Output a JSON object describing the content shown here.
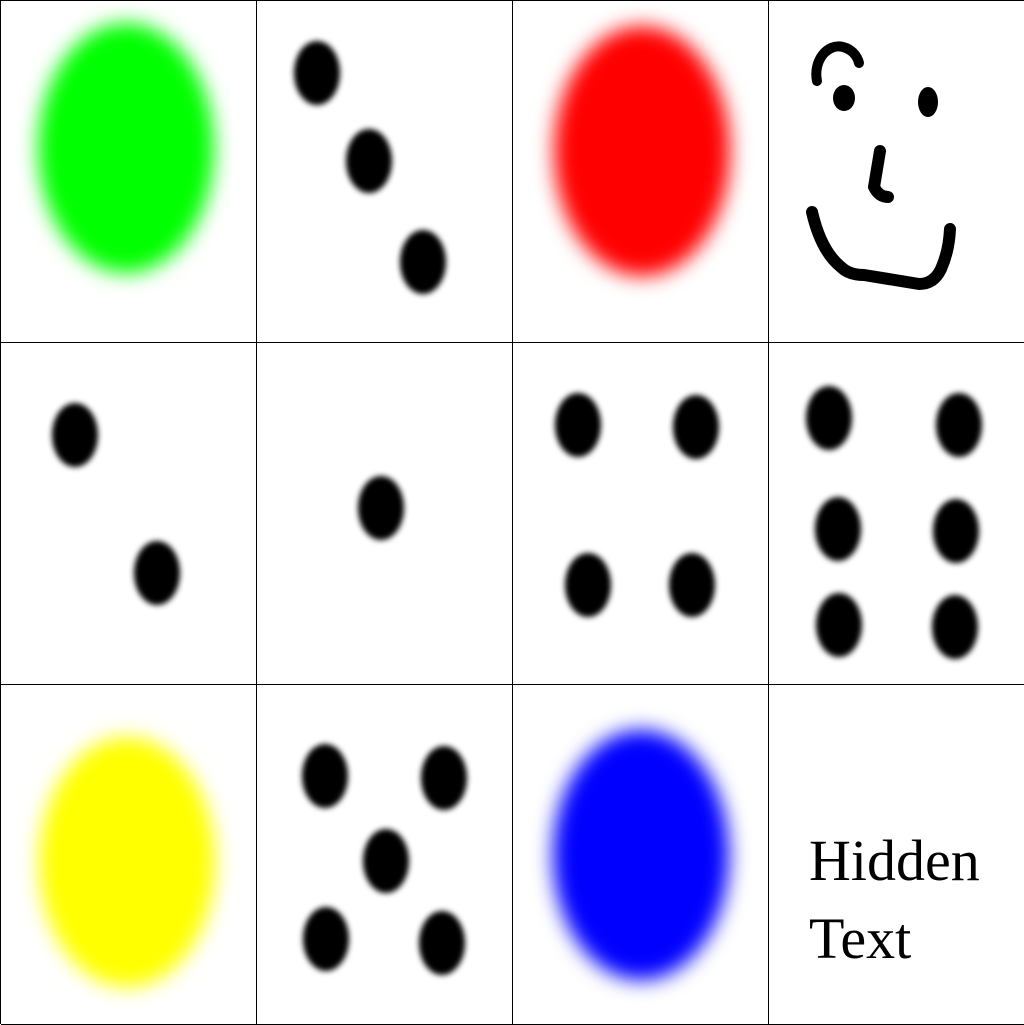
{
  "tiles": [
    {
      "id": "green-blob",
      "kind": "blob",
      "color": "#00ff00"
    },
    {
      "id": "dots-3",
      "kind": "dots",
      "count": 3
    },
    {
      "id": "red-blob",
      "kind": "blob",
      "color": "#ff0000"
    },
    {
      "id": "smiley-face",
      "kind": "drawing",
      "icon": "smiley-face-icon"
    },
    {
      "id": "dots-2",
      "kind": "dots",
      "count": 2
    },
    {
      "id": "dots-1",
      "kind": "dots",
      "count": 1
    },
    {
      "id": "dots-4",
      "kind": "dots",
      "count": 4
    },
    {
      "id": "dots-6",
      "kind": "dots",
      "count": 6
    },
    {
      "id": "yellow-blob",
      "kind": "blob",
      "color": "#ffff00"
    },
    {
      "id": "dots-5",
      "kind": "dots",
      "count": 5
    },
    {
      "id": "blue-blob",
      "kind": "blob",
      "color": "#0000ff"
    },
    {
      "id": "text-tile",
      "kind": "text"
    }
  ],
  "text_tile": {
    "line1": "Hidden",
    "line2": "Text"
  }
}
